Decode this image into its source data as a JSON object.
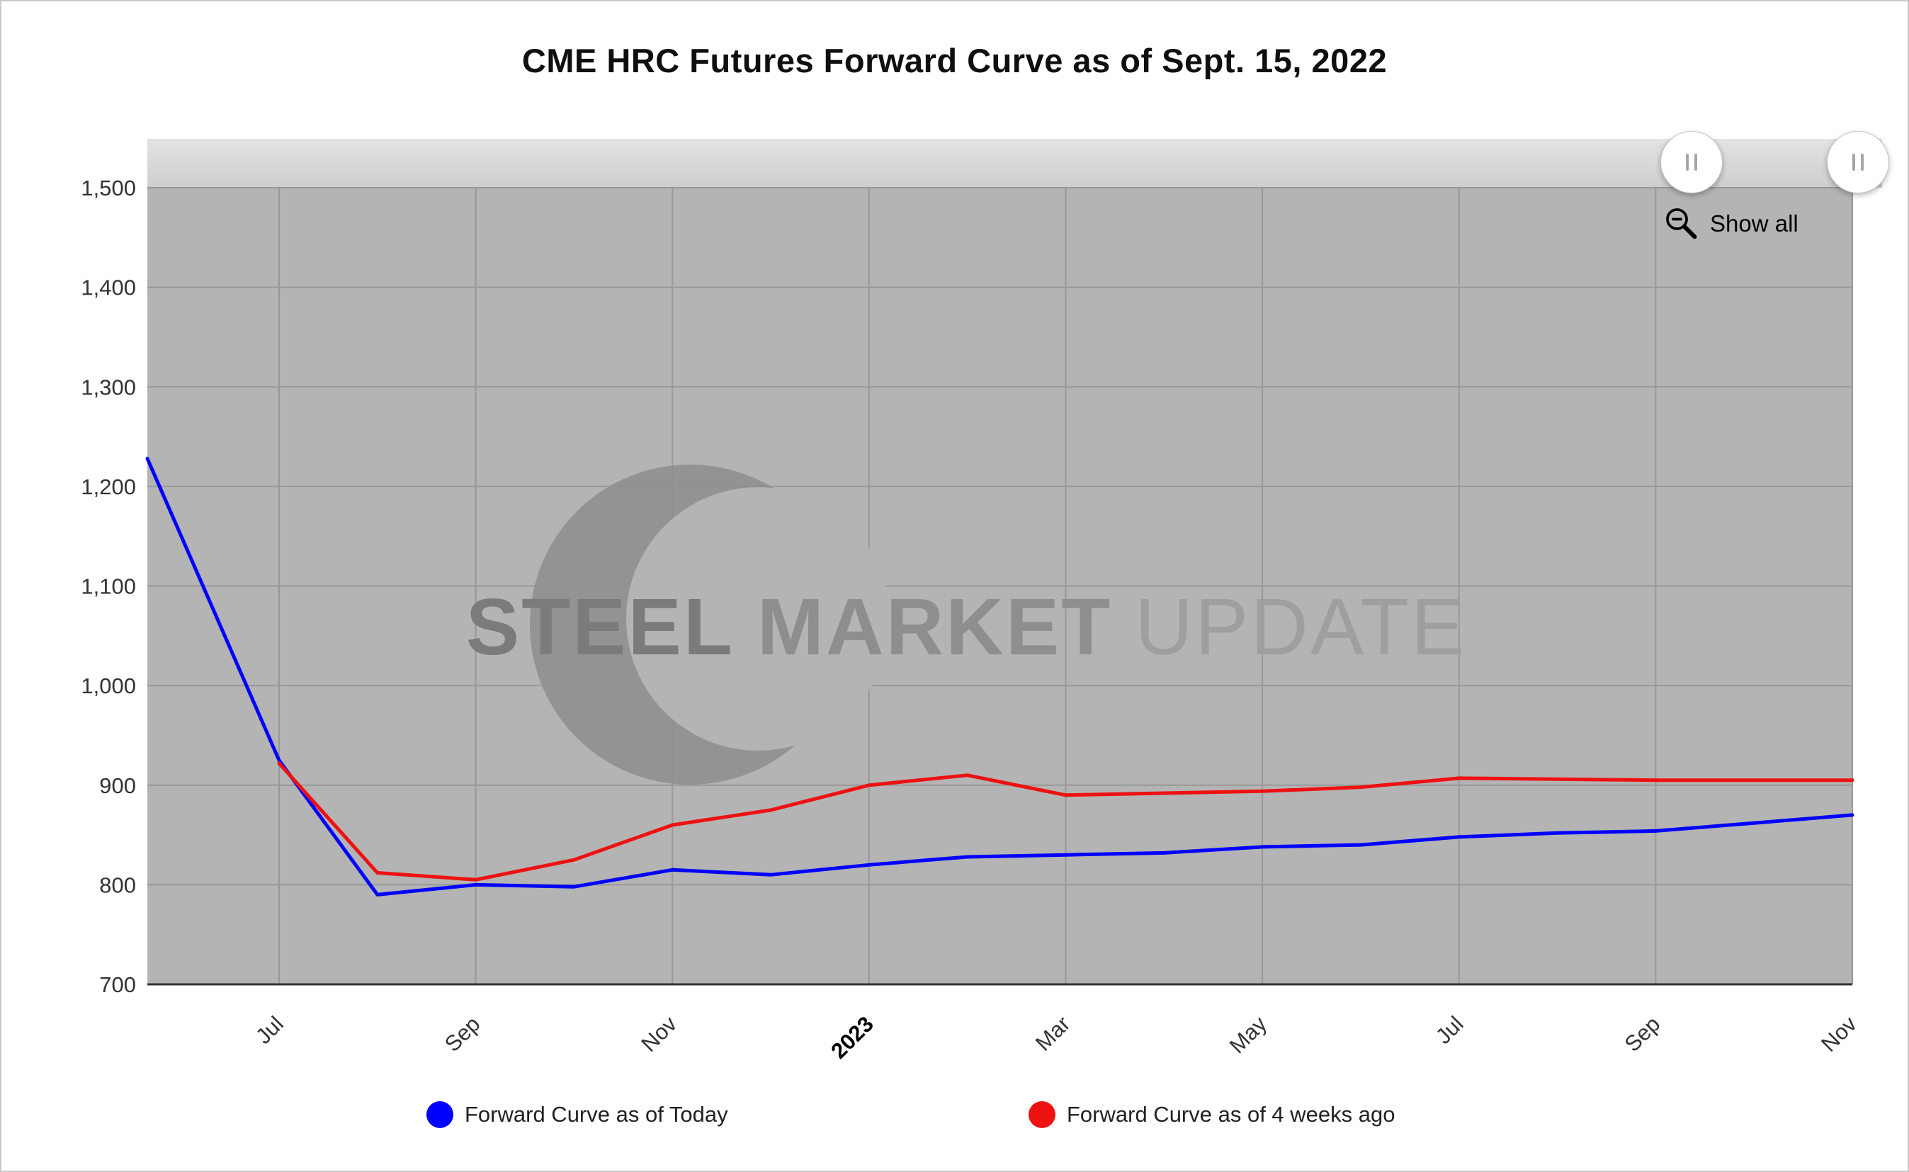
{
  "page": {
    "title": "CME HRC Futures Forward Curve as of Sept. 15, 2022"
  },
  "controls": {
    "show_all_label": "Show all"
  },
  "watermark": {
    "part1": "STEEL",
    "part2": "MARKET",
    "part3": "UPDATE"
  },
  "legend": {
    "items": [
      {
        "label": "Forward Curve as of Today",
        "color": "#0000ff"
      },
      {
        "label": "Forward Curve as of 4 weeks ago",
        "color": "#ee1111"
      }
    ]
  },
  "chart_data": {
    "type": "line",
    "title": "CME HRC Futures Forward Curve as of Sept. 15, 2022",
    "plot_background": "#b4b4b4",
    "gridline_color": "#989898",
    "band_colors": [
      "#e3e3e3",
      "#cecece"
    ],
    "legend_position": "bottom",
    "grid": true,
    "x_axis": {
      "min": -1.34,
      "max": 16,
      "unit": "months (Jul 2022 = 0)",
      "ticks": [
        {
          "label": "Jul",
          "x": 0,
          "bold": false
        },
        {
          "label": "Sep",
          "x": 2,
          "bold": false
        },
        {
          "label": "Nov",
          "x": 4,
          "bold": false
        },
        {
          "label": "2023",
          "x": 6,
          "bold": true
        },
        {
          "label": "Mar",
          "x": 8,
          "bold": false
        },
        {
          "label": "May",
          "x": 10,
          "bold": false
        },
        {
          "label": "Jul",
          "x": 12,
          "bold": false
        },
        {
          "label": "Sep",
          "x": 14,
          "bold": false
        },
        {
          "label": "Nov",
          "x": 16,
          "bold": false
        }
      ]
    },
    "y_axis": {
      "min": 700,
      "max": 1500,
      "ticks": [
        {
          "value": 700,
          "label": "700"
        },
        {
          "value": 800,
          "label": "800"
        },
        {
          "value": 900,
          "label": "900"
        },
        {
          "value": 1000,
          "label": "1,000"
        },
        {
          "value": 1100,
          "label": "1,100"
        },
        {
          "value": 1200,
          "label": "1,200"
        },
        {
          "value": 1300,
          "label": "1,300"
        },
        {
          "value": 1400,
          "label": "1,400"
        },
        {
          "value": 1500,
          "label": "1,500"
        }
      ]
    },
    "series": [
      {
        "id": "forward-curve-today",
        "name": "Forward Curve as of Today",
        "color": "#0000ff",
        "points": [
          [
            -1.34,
            1228
          ],
          [
            0,
            925
          ],
          [
            1,
            790
          ],
          [
            2,
            800
          ],
          [
            3,
            798
          ],
          [
            4,
            815
          ],
          [
            5,
            810
          ],
          [
            6,
            820
          ],
          [
            7,
            828
          ],
          [
            8,
            830
          ],
          [
            9,
            832
          ],
          [
            10,
            838
          ],
          [
            11,
            840
          ],
          [
            12,
            848
          ],
          [
            13,
            852
          ],
          [
            14,
            854
          ],
          [
            15,
            862
          ],
          [
            16,
            870
          ]
        ]
      },
      {
        "id": "forward-curve-4-weeks-ago",
        "name": "Forward Curve as of 4 weeks ago",
        "color": "#ee1111",
        "points": [
          [
            0,
            922
          ],
          [
            1,
            812
          ],
          [
            2,
            805
          ],
          [
            3,
            825
          ],
          [
            4,
            860
          ],
          [
            5,
            875
          ],
          [
            6,
            900
          ],
          [
            7,
            910
          ],
          [
            8,
            890
          ],
          [
            9,
            892
          ],
          [
            10,
            894
          ],
          [
            11,
            898
          ],
          [
            12,
            907
          ],
          [
            13,
            906
          ],
          [
            14,
            905
          ],
          [
            15,
            905
          ],
          [
            16,
            905
          ]
        ]
      }
    ]
  }
}
